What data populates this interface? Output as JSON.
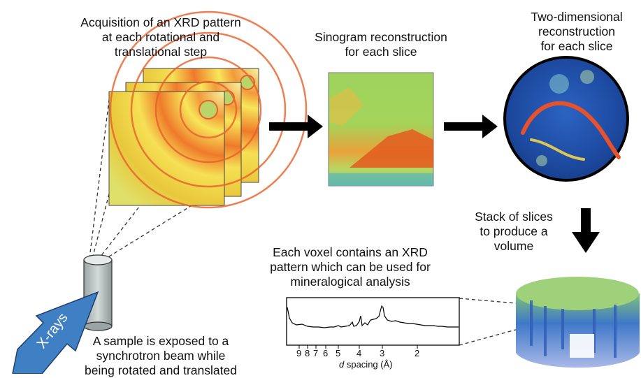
{
  "captions": {
    "acquisition": "Acquisition of an XRD pattern\nat each rotational and\ntranslational step",
    "sinogram": "Sinogram reconstruction\nfor each slice",
    "reconstruction": "Two-dimensional\nreconstruction\nfor each slice",
    "stack": "Stack of slices\nto produce a\nvolume",
    "voxel": "Each voxel contains an XRD\npattern which can be used for\nmineralogical analysis",
    "sample": "A sample is exposed to a\nsynchrotron beam while\nbeing rotated and translated"
  },
  "beam_label": "X-rays",
  "xrd_axis": {
    "ticks": [
      "9",
      "8",
      "7",
      "6",
      "5",
      "4",
      "3",
      "2"
    ],
    "label_italic": "d",
    "label_rest": " spacing (Å)"
  },
  "colors": {
    "arrow": "#000000",
    "beam": "#3f7fc4",
    "sample": "#bcc6c4",
    "pattern_warm": "#e8602a",
    "sinogram_green": "#9ccf5a",
    "slice_blue": "#1c4aa3"
  }
}
